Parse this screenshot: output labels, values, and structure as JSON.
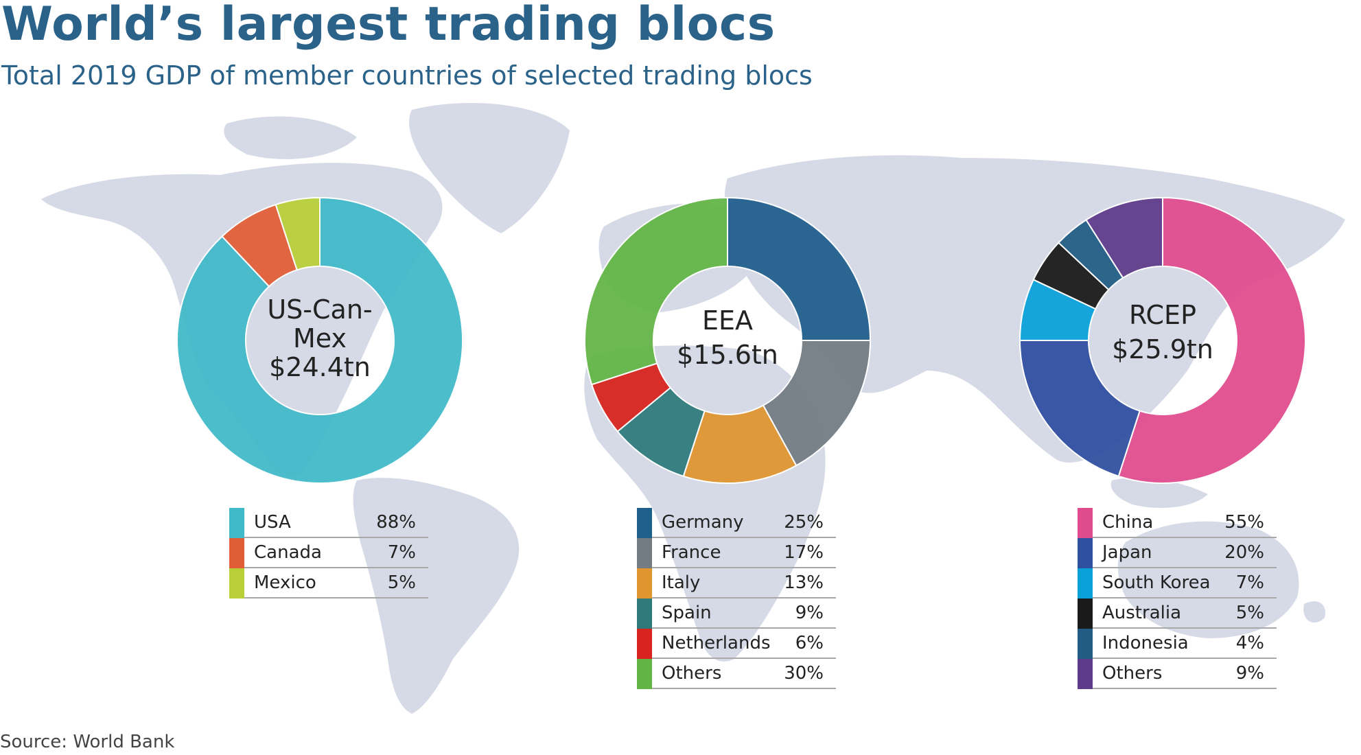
{
  "header": {
    "title": "World’s largest trading blocs",
    "subtitle": "Total 2019 GDP of member countries of selected trading blocs"
  },
  "footer": {
    "source": "Source: World Bank"
  },
  "colors": {
    "map_land": "#d6dae6",
    "title_text": "#2a6289"
  },
  "chart_data": [
    {
      "type": "pie",
      "center_label": [
        "US-Can-",
        "Mex",
        "$24.4tn"
      ],
      "slices": [
        {
          "label": "USA",
          "value": 88,
          "display": "88%",
          "color": "#40b9c8"
        },
        {
          "label": "Canada",
          "value": 7,
          "display": "7%",
          "color": "#e05d35"
        },
        {
          "label": "Mexico",
          "value": 5,
          "display": "5%",
          "color": "#b8cf37"
        }
      ]
    },
    {
      "type": "pie",
      "center_label": [
        "EEA",
        "$15.6tn"
      ],
      "slices": [
        {
          "label": "Germany",
          "value": 25,
          "display": "25%",
          "color": "#1f5f8b"
        },
        {
          "label": "France",
          "value": 17,
          "display": "17%",
          "color": "#737b83"
        },
        {
          "label": "Italy",
          "value": 13,
          "display": "13%",
          "color": "#e0952f"
        },
        {
          "label": "Spain",
          "value": 9,
          "display": "9%",
          "color": "#2e7a7b"
        },
        {
          "label": "Netherlands",
          "value": 6,
          "display": "6%",
          "color": "#d8231e"
        },
        {
          "label": "Others",
          "value": 30,
          "display": "30%",
          "color": "#62b545"
        }
      ]
    },
    {
      "type": "pie",
      "center_label": [
        "RCEP",
        "$25.9tn"
      ],
      "slices": [
        {
          "label": "China",
          "value": 55,
          "display": "55%",
          "color": "#e04b8d"
        },
        {
          "label": "Japan",
          "value": 20,
          "display": "20%",
          "color": "#2f4f9f"
        },
        {
          "label": "South Korea",
          "value": 7,
          "display": "7%",
          "color": "#0aa1d9"
        },
        {
          "label": "Australia",
          "value": 5,
          "display": "5%",
          "color": "#1a1a1a"
        },
        {
          "label": "Indonesia",
          "value": 4,
          "display": "4%",
          "color": "#225c84"
        },
        {
          "label": "Others",
          "value": 9,
          "display": "9%",
          "color": "#5e3a8a"
        }
      ]
    }
  ]
}
